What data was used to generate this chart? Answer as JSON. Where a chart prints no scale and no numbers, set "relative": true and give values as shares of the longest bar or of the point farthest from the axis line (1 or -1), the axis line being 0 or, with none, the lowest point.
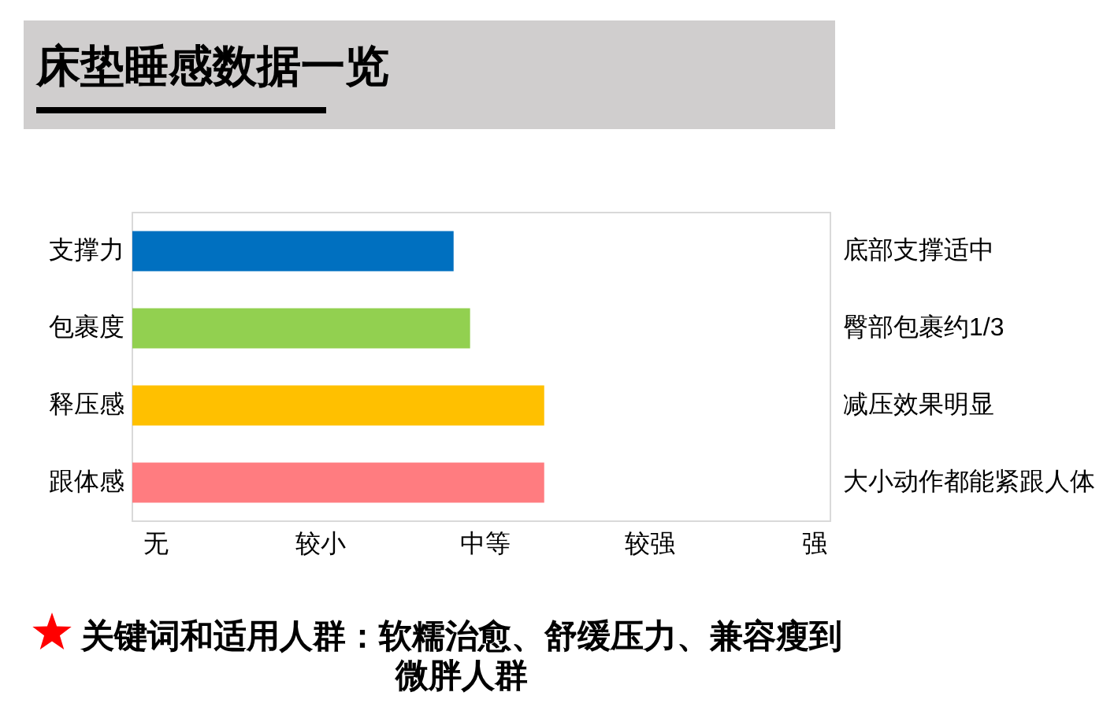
{
  "chart_data": {
    "type": "bar",
    "orientation": "horizontal",
    "relative": true,
    "title": "床垫睡感数据一览",
    "categories": [
      "支撑力",
      "包裹度",
      "释压感",
      "跟体感"
    ],
    "y2_categories": [
      "底部支撑适中",
      "臀部包裹约1/3",
      "减压效果明显",
      "大小动作都能紧跟人体"
    ],
    "values": [
      0.78,
      0.82,
      1,
      1
    ],
    "colors": [
      "#0070c0",
      "#92d050",
      "#ffc000",
      "#ff7c80"
    ],
    "annotations": [
      "无",
      "较小",
      "中等",
      "较强",
      "强",
      "关键词和适用人群：软糯治愈、舒缓压力、兼容瘦到微胖人群"
    ]
  }
}
